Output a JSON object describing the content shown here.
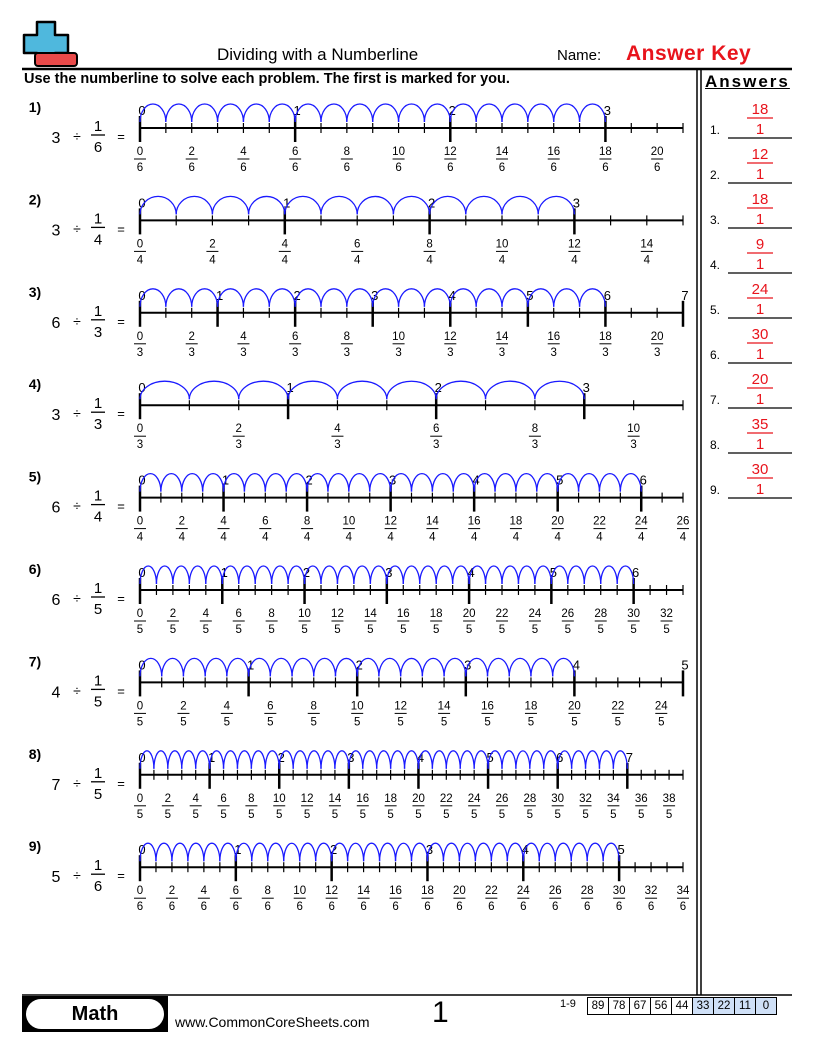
{
  "header": {
    "title": "Dividing with a Numberline",
    "name_label": "Name:",
    "name_value": "Answer Key"
  },
  "instructions": "Use the numberline to solve each problem. The first is marked for you.",
  "colors": {
    "arc": "#1a1aff",
    "answer": "#e8141c",
    "logo_plus": "#4fb8dd",
    "logo_minus": "#e84a4a",
    "score_shade": "#cfe0f7"
  },
  "problems": [
    {
      "label": "1)",
      "dividend": "3",
      "op": "÷",
      "num": "1",
      "den": "6",
      "eq": "=",
      "denominator": 6,
      "line_max_numerator": 21,
      "jumps": 18
    },
    {
      "label": "2)",
      "dividend": "3",
      "op": "÷",
      "num": "1",
      "den": "4",
      "eq": "=",
      "denominator": 4,
      "line_max_numerator": 15,
      "jumps": 12
    },
    {
      "label": "3)",
      "dividend": "6",
      "op": "÷",
      "num": "1",
      "den": "3",
      "eq": "=",
      "denominator": 3,
      "line_max_numerator": 21,
      "jumps": 18
    },
    {
      "label": "4)",
      "dividend": "3",
      "op": "÷",
      "num": "1",
      "den": "3",
      "eq": "=",
      "denominator": 3,
      "line_max_numerator": 11,
      "jumps": 9
    },
    {
      "label": "5)",
      "dividend": "6",
      "op": "÷",
      "num": "1",
      "den": "4",
      "eq": "=",
      "denominator": 4,
      "line_max_numerator": 26,
      "jumps": 24
    },
    {
      "label": "6)",
      "dividend": "6",
      "op": "÷",
      "num": "1",
      "den": "5",
      "eq": "=",
      "denominator": 5,
      "line_max_numerator": 33,
      "jumps": 30
    },
    {
      "label": "7)",
      "dividend": "4",
      "op": "÷",
      "num": "1",
      "den": "5",
      "eq": "=",
      "denominator": 5,
      "line_max_numerator": 25,
      "jumps": 20
    },
    {
      "label": "8)",
      "dividend": "7",
      "op": "÷",
      "num": "1",
      "den": "5",
      "eq": "=",
      "denominator": 5,
      "line_max_numerator": 39,
      "jumps": 35
    },
    {
      "label": "9)",
      "dividend": "5",
      "op": "÷",
      "num": "1",
      "den": "6",
      "eq": "=",
      "denominator": 6,
      "line_max_numerator": 34,
      "jumps": 30
    }
  ],
  "answers": {
    "title": "Answers",
    "items": [
      {
        "label": "1.",
        "num": "18",
        "den": "1"
      },
      {
        "label": "2.",
        "num": "12",
        "den": "1"
      },
      {
        "label": "3.",
        "num": "18",
        "den": "1"
      },
      {
        "label": "4.",
        "num": "9",
        "den": "1"
      },
      {
        "label": "5.",
        "num": "24",
        "den": "1"
      },
      {
        "label": "6.",
        "num": "30",
        "den": "1"
      },
      {
        "label": "7.",
        "num": "20",
        "den": "1"
      },
      {
        "label": "8.",
        "num": "35",
        "den": "1"
      },
      {
        "label": "9.",
        "num": "30",
        "den": "1"
      }
    ]
  },
  "footer": {
    "subject": "Math",
    "url": "www.CommonCoreSheets.com",
    "page": "1",
    "score_label": "1-9",
    "scores": [
      "89",
      "78",
      "67",
      "56",
      "44",
      "33",
      "22",
      "11",
      "0"
    ],
    "shaded_from_index": 5
  }
}
